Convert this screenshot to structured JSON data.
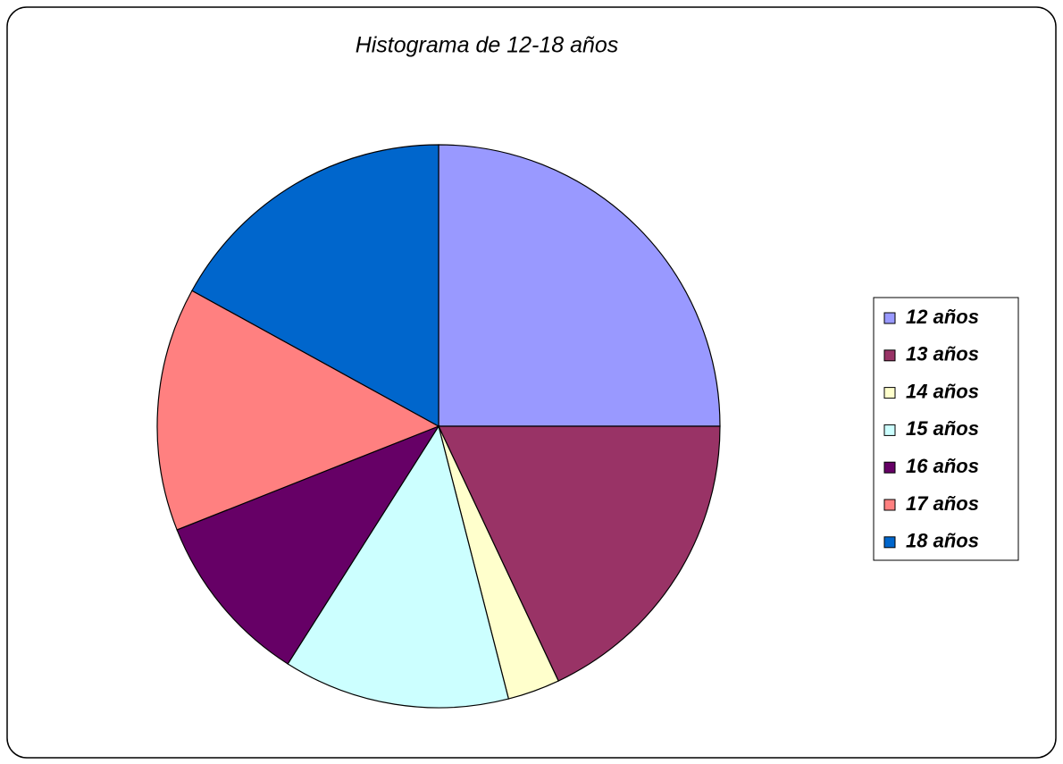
{
  "chart_data": {
    "type": "pie",
    "title": "Histograma de 12-18 años",
    "categories": [
      "12 años",
      "13 años",
      "14 años",
      "15 años",
      "16 años",
      "17 años",
      "18 años"
    ],
    "values": [
      25,
      18,
      3,
      13,
      10,
      14,
      17
    ],
    "colors": [
      "#9999ff",
      "#993366",
      "#ffffcc",
      "#ccffff",
      "#660066",
      "#ff8080",
      "#0066cc"
    ],
    "legend": "right"
  }
}
